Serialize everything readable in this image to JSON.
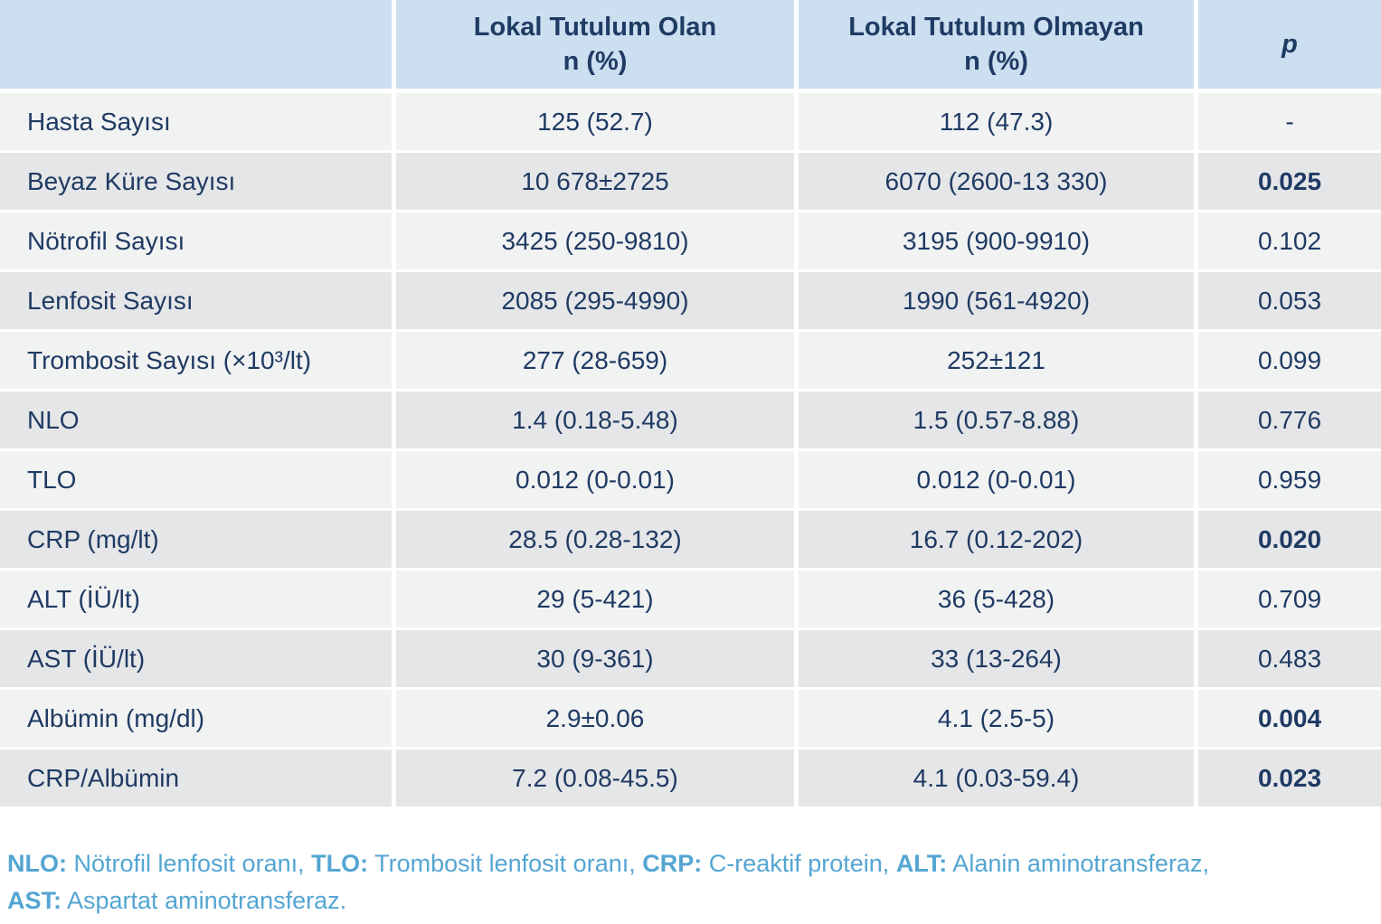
{
  "table": {
    "header": {
      "blank": "",
      "col_olan": [
        "Lokal Tutulum Olan",
        "n (%)"
      ],
      "col_olmayan": [
        "Lokal Tutulum Olmayan",
        "n (%)"
      ],
      "col_p": "p"
    },
    "rows": [
      {
        "label": "Hasta Sayısı",
        "olan": "125 (52.7)",
        "olmayan": "112 (47.3)",
        "p": "-",
        "p_bold": false
      },
      {
        "label": "Beyaz Küre Sayısı",
        "olan": "10 678±2725",
        "olmayan": "6070 (2600-13 330)",
        "p": "0.025",
        "p_bold": true
      },
      {
        "label": "Nötrofil Sayısı",
        "olan": "3425 (250-9810)",
        "olmayan": "3195 (900-9910)",
        "p": "0.102",
        "p_bold": false
      },
      {
        "label": "Lenfosit Sayısı",
        "olan": "2085 (295-4990)",
        "olmayan": "1990 (561-4920)",
        "p": "0.053",
        "p_bold": false
      },
      {
        "label": "Trombosit Sayısı (×10³/lt)",
        "olan": "277 (28-659)",
        "olmayan": "252±121",
        "p": "0.099",
        "p_bold": false
      },
      {
        "label": "NLO",
        "olan": "1.4 (0.18-5.48)",
        "olmayan": "1.5 (0.57-8.88)",
        "p": "0.776",
        "p_bold": false
      },
      {
        "label": "TLO",
        "olan": "0.012 (0-0.01)",
        "olmayan": "0.012 (0-0.01)",
        "p": "0.959",
        "p_bold": false
      },
      {
        "label": "CRP (mg/lt)",
        "olan": "28.5 (0.28-132)",
        "olmayan": "16.7 (0.12-202)",
        "p": "0.020",
        "p_bold": true
      },
      {
        "label": "ALT (İÜ/lt)",
        "olan": "29 (5-421)",
        "olmayan": "36 (5-428)",
        "p": "0.709",
        "p_bold": false
      },
      {
        "label": "AST (İÜ/lt)",
        "olan": "30 (9-361)",
        "olmayan": "33 (13-264)",
        "p": "0.483",
        "p_bold": false
      },
      {
        "label": "Albümin (mg/dl)",
        "olan": "2.9±0.06",
        "olmayan": "4.1 (2.5-5)",
        "p": "0.004",
        "p_bold": true
      },
      {
        "label": "CRP/Albümin",
        "olan": "7.2 (0.08-45.5)",
        "olmayan": "4.1 (0.03-59.4)",
        "p": "0.023",
        "p_bold": true
      }
    ]
  },
  "footnote": {
    "lines": [
      [
        {
          "abbr": "NLO:",
          "text": " Nötrofil lenfosit oranı, "
        },
        {
          "abbr": "TLO:",
          "text": " Trombosit lenfosit oranı, "
        },
        {
          "abbr": "CRP:",
          "text": " C-reaktif protein, "
        },
        {
          "abbr": "ALT:",
          "text": " Alanin aminotransferaz,"
        }
      ],
      [
        {
          "abbr": "AST:",
          "text": " Aspartat aminotransferaz."
        }
      ]
    ]
  },
  "colors": {
    "header_bg": "#cbdff0",
    "row_light": "#f1f2f2",
    "row_dark": "#e5e6e8",
    "text": "#1f3a63",
    "footnote": "#54a5d2"
  }
}
